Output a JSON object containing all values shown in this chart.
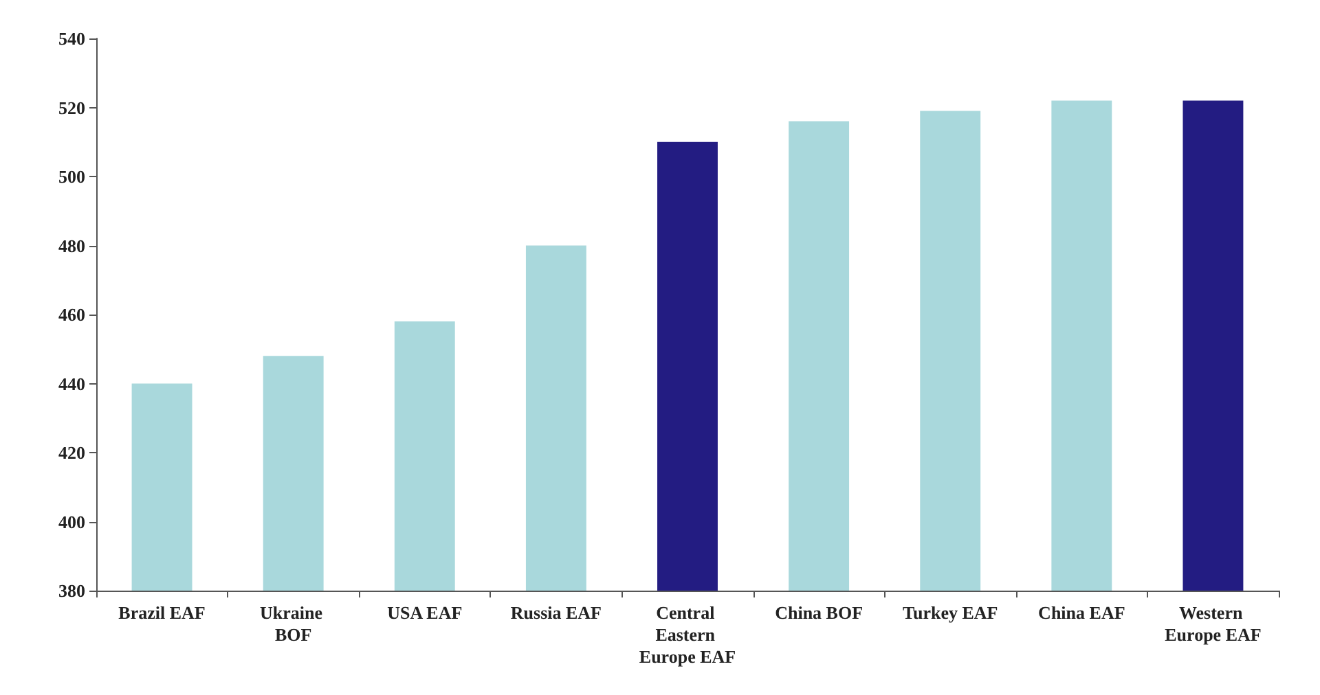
{
  "chart_data": {
    "type": "bar",
    "categories": [
      "Brazil EAF",
      "Ukraine BOF",
      "USA EAF",
      "Russia EAF",
      "Central Eastern Europe EAF",
      "China BOF",
      "Turkey EAF",
      "China EAF",
      "Western Europe EAF"
    ],
    "values": [
      440,
      448,
      458,
      480,
      510,
      516,
      519,
      522,
      522
    ],
    "colors": [
      "#a9d8dc",
      "#a9d8dc",
      "#a9d8dc",
      "#a9d8dc",
      "#231c82",
      "#a9d8dc",
      "#a9d8dc",
      "#a9d8dc",
      "#231c82"
    ],
    "ylim": [
      380,
      540
    ],
    "yticks": [
      380,
      400,
      420,
      440,
      460,
      480,
      500,
      520,
      540
    ],
    "grid": false
  }
}
